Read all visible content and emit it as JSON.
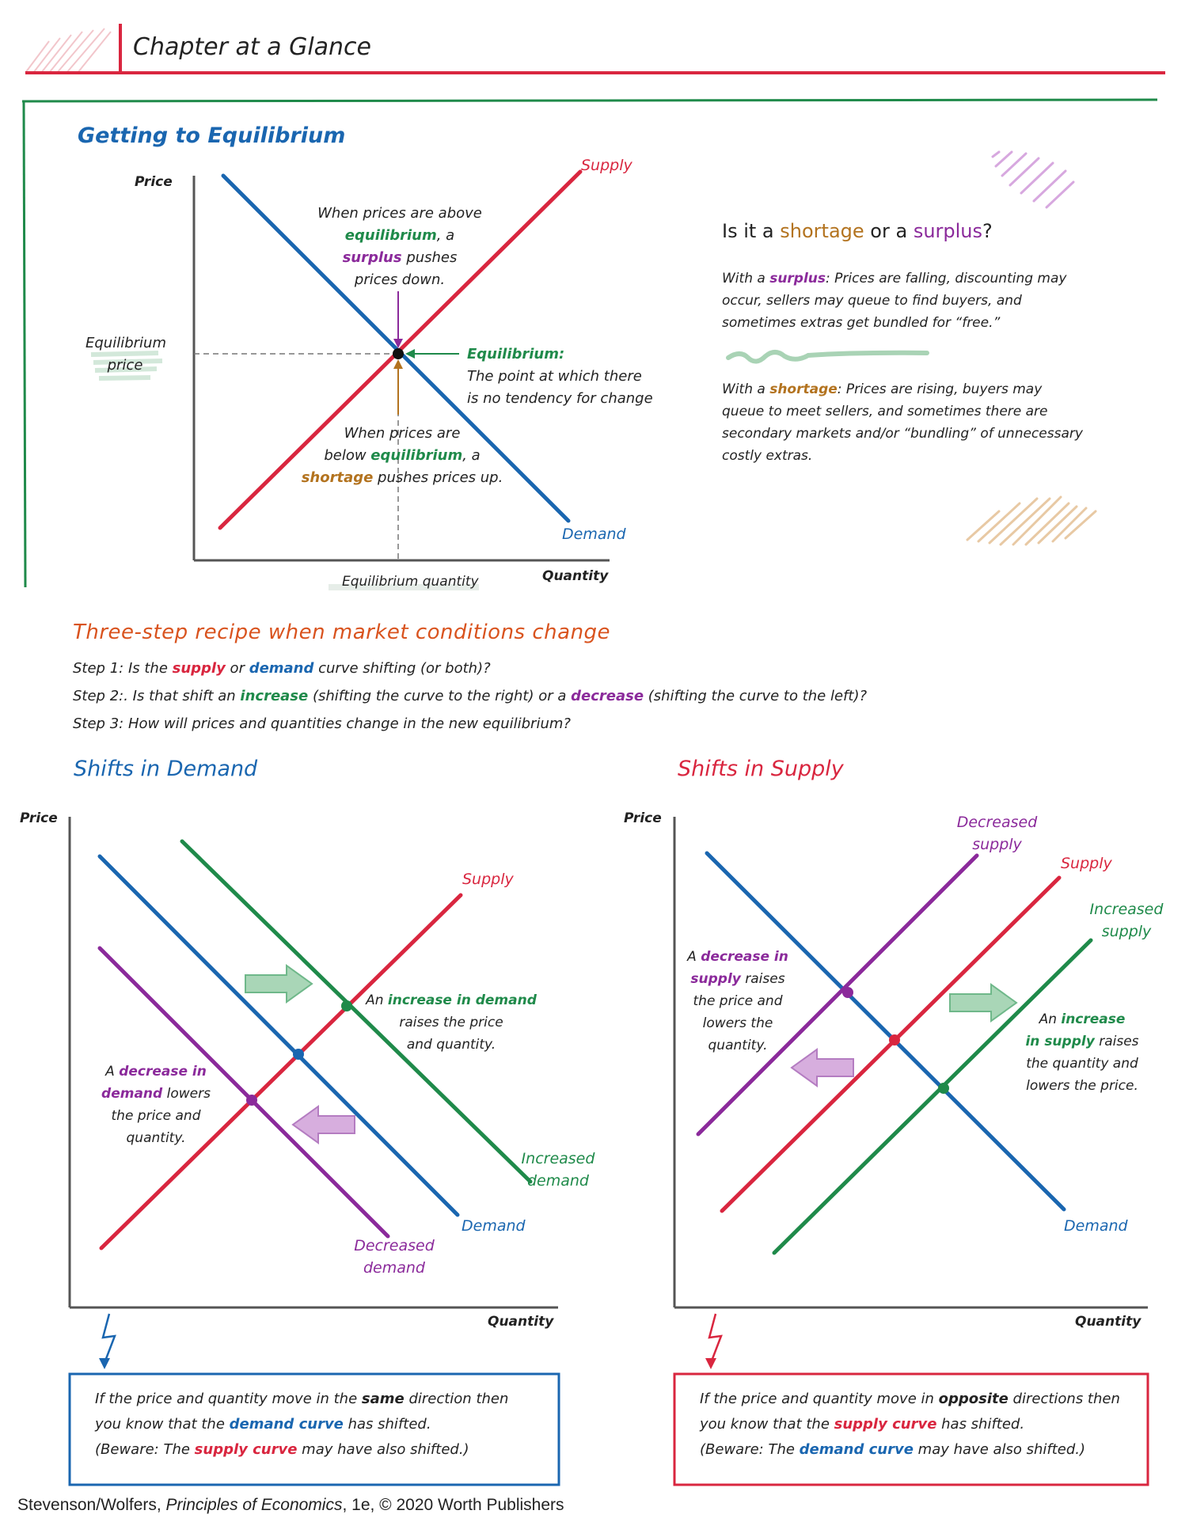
{
  "header": {
    "title": "Chapter at a Glance"
  },
  "equilibrium": {
    "heading": "Getting to Equilibrium",
    "price_axis": "Price",
    "quantity_axis": "Quantity",
    "supply_label": "Supply",
    "demand_label": "Demand",
    "eq_price_label": "Equilibrium price",
    "eq_quantity_label": "Equilibrium quantity",
    "above_1": "When prices are above",
    "above_2a": "equilibrium",
    "above_2b": ", a",
    "above_3a": "surplus",
    "above_3b": " pushes",
    "above_4": "prices down.",
    "eq_title": "Equilibrium:",
    "eq_desc_1": "The point at which there",
    "eq_desc_2": "is no tendency for change",
    "below_1": "When prices are",
    "below_2a": "below ",
    "below_2b": "equilibrium",
    "below_2c": ", a",
    "below_3a": "shortage",
    "below_3b": " pushes prices up."
  },
  "shortage_surplus": {
    "q_1": "Is it a ",
    "q_shortage": "shortage",
    "q_2": " or a ",
    "q_surplus": "surplus",
    "q_3": "?",
    "surplus_1a": "With a ",
    "surplus_1b": "surplus",
    "surplus_1c": ": Prices are falling, discounting may",
    "surplus_2": "occur, sellers may queue to find buyers, and",
    "surplus_3": "sometimes extras get bundled for “free.”",
    "shortage_1a": "With a ",
    "shortage_1b": "shortage",
    "shortage_1c": ": Prices are rising, buyers may",
    "shortage_2": "queue to meet sellers, and sometimes there are",
    "shortage_3": "secondary markets and/or “bundling” of unnecessary",
    "shortage_4": "costly extras."
  },
  "recipe": {
    "heading": "Three-step recipe when market conditions change",
    "s1a": "Step 1: Is the ",
    "s1b": "supply",
    "s1c": " or ",
    "s1d": "demand",
    "s1e": " curve shifting (or both)?",
    "s2a": "Step 2:. Is that shift an ",
    "s2b": "increase",
    "s2c": " (shifting the curve to the right) or a ",
    "s2d": "decrease",
    "s2e": " (shifting the curve to the left)?",
    "s3": "Step 3: How will prices and quantities change in the new equilibrium?"
  },
  "shift_demand": {
    "heading": "Shifts in Demand",
    "price_axis": "Price",
    "quantity_axis": "Quantity",
    "supply_label": "Supply",
    "demand_label": "Demand",
    "inc_1": "Increased",
    "inc_2": "demand",
    "dec_1": "Decreased",
    "dec_2": "demand",
    "inc_note_1a": "An ",
    "inc_note_1b": "increase in demand",
    "inc_note_2": "raises the price",
    "inc_note_3": "and quantity.",
    "dec_note_1a": "A ",
    "dec_note_1b": "decrease in",
    "dec_note_2a": "demand",
    "dec_note_2b": " lowers",
    "dec_note_3": "the price and",
    "dec_note_4": "quantity.",
    "box_1a": "If the price and quantity move in the ",
    "box_1b": "same",
    "box_1c": " direction then",
    "box_2a": "you know that the ",
    "box_2b": "demand curve",
    "box_2c": " has shifted.",
    "box_3a": "(Beware: The ",
    "box_3b": "supply curve",
    "box_3c": " may have also shifted.)"
  },
  "shift_supply": {
    "heading": "Shifts in Supply",
    "price_axis": "Price",
    "quantity_axis": "Quantity",
    "supply_label": "Supply",
    "demand_label": "Demand",
    "dec_1": "Decreased",
    "dec_2": "supply",
    "inc_1": "Increased",
    "inc_2": "supply",
    "dec_note_1a": "A ",
    "dec_note_1b": "decrease in",
    "dec_note_2a": "supply",
    "dec_note_2b": " raises",
    "dec_note_3": "the price and",
    "dec_note_4": "lowers the",
    "dec_note_5": "quantity.",
    "inc_note_1a": "An ",
    "inc_note_1b": "increase",
    "inc_note_2a": "in supply",
    "inc_note_2b": " raises",
    "inc_note_3": "the quantity and",
    "inc_note_4": "lowers the price.",
    "box_1a": "If the price and quantity move in ",
    "box_1b": "opposite",
    "box_1c": " directions then",
    "box_2a": "you know that the ",
    "box_2b": "supply curve",
    "box_2c": " has shifted.",
    "box_3a": "(Beware: The ",
    "box_3b": "demand curve",
    "box_3c": " may have also shifted.)"
  },
  "footer": {
    "a": "Stevenson/Wolfers, ",
    "b": "Principles of Economics",
    "c": ", 1e, © 2020 Worth Publishers"
  },
  "colors": {
    "supply": "#d9263f",
    "demand": "#1a66b0",
    "increase": "#1f8a4a",
    "decrease": "#8b2a9b",
    "shortage": "#b3731f",
    "recipe": "#d9531e"
  }
}
